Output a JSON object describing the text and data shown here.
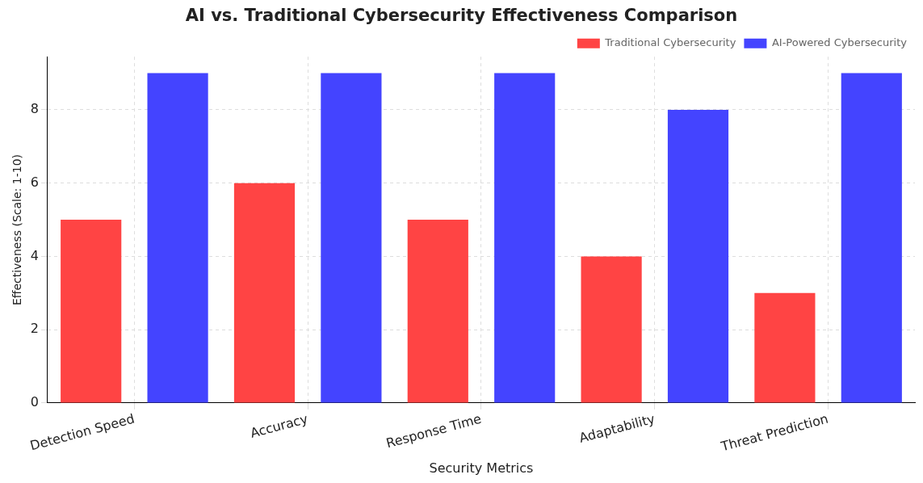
{
  "chart_data": {
    "type": "bar",
    "title": "AI vs. Traditional Cybersecurity Effectiveness Comparison",
    "xlabel": "Security Metrics",
    "ylabel": "Effectiveness (Scale: 1-10)",
    "categories": [
      "Detection Speed",
      "Accuracy",
      "Response Time",
      "Adaptability",
      "Threat Prediction"
    ],
    "series": [
      {
        "name": "Traditional Cybersecurity",
        "color": "#ff4444",
        "values": [
          5,
          6,
          5,
          4,
          3
        ]
      },
      {
        "name": "AI-Powered Cybersecurity",
        "color": "#4444ff",
        "values": [
          9,
          9,
          9,
          8,
          9
        ]
      }
    ],
    "ylim": [
      0,
      9.45
    ],
    "yticks": [
      0,
      2,
      4,
      6,
      8
    ],
    "grid": true,
    "legend": "top right"
  }
}
